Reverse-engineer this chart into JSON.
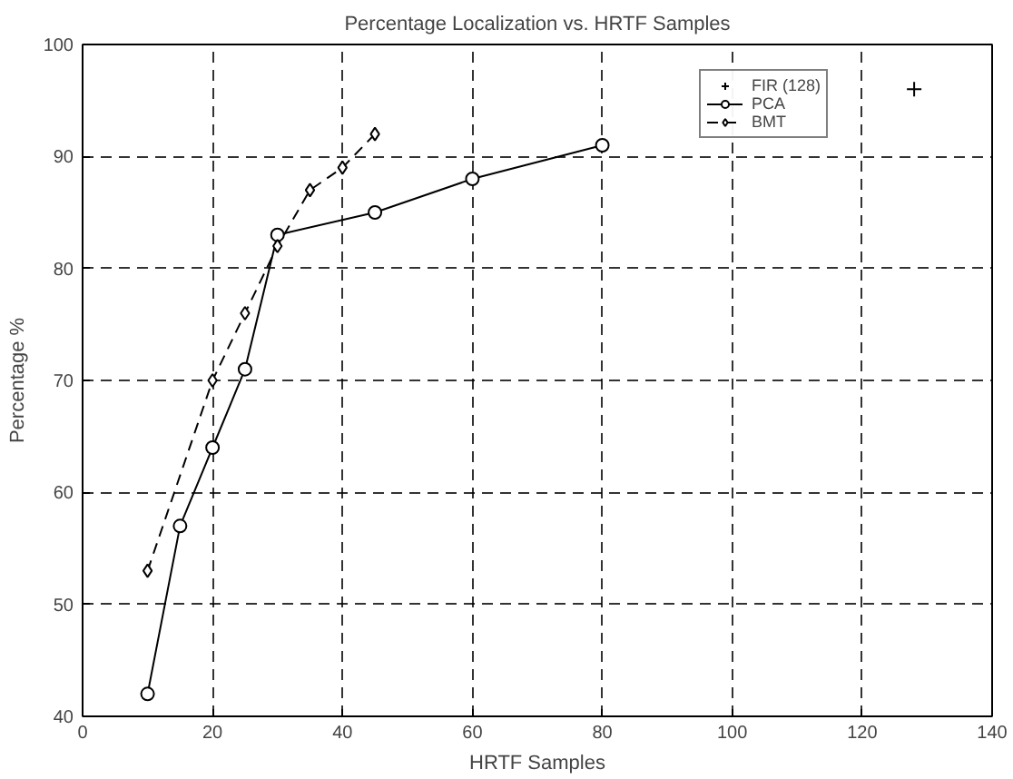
{
  "chart_data": {
    "type": "line",
    "title": "Percentage Localization vs. HRTF Samples",
    "xlabel": "HRTF Samples",
    "ylabel": "Percentage %",
    "xlim": [
      0,
      140
    ],
    "xticks": [
      0,
      20,
      40,
      60,
      80,
      100,
      120,
      140
    ],
    "ylim": [
      40,
      100
    ],
    "yticks": [
      40,
      50,
      60,
      70,
      80,
      90,
      100
    ],
    "grid": true,
    "legend": "top right",
    "series": [
      {
        "name": "FIR (128)",
        "type": "scatter",
        "color": "#000000",
        "marker": "cross",
        "x": [
          128
        ],
        "values": [
          96
        ]
      },
      {
        "name": "PCA",
        "color": "#000000",
        "marker": "circle",
        "line_style": "solid",
        "x": [
          10,
          15,
          20,
          25,
          30,
          45,
          60,
          80
        ],
        "values": [
          42,
          57,
          64,
          71,
          83,
          85,
          88,
          91
        ]
      },
      {
        "name": "BMT",
        "color": "#000000",
        "marker": "diamond",
        "line_style": "dashed",
        "x": [
          10,
          20,
          25,
          30,
          35,
          40,
          45
        ],
        "values": [
          53,
          70,
          76,
          82,
          87,
          89,
          92
        ]
      }
    ]
  }
}
